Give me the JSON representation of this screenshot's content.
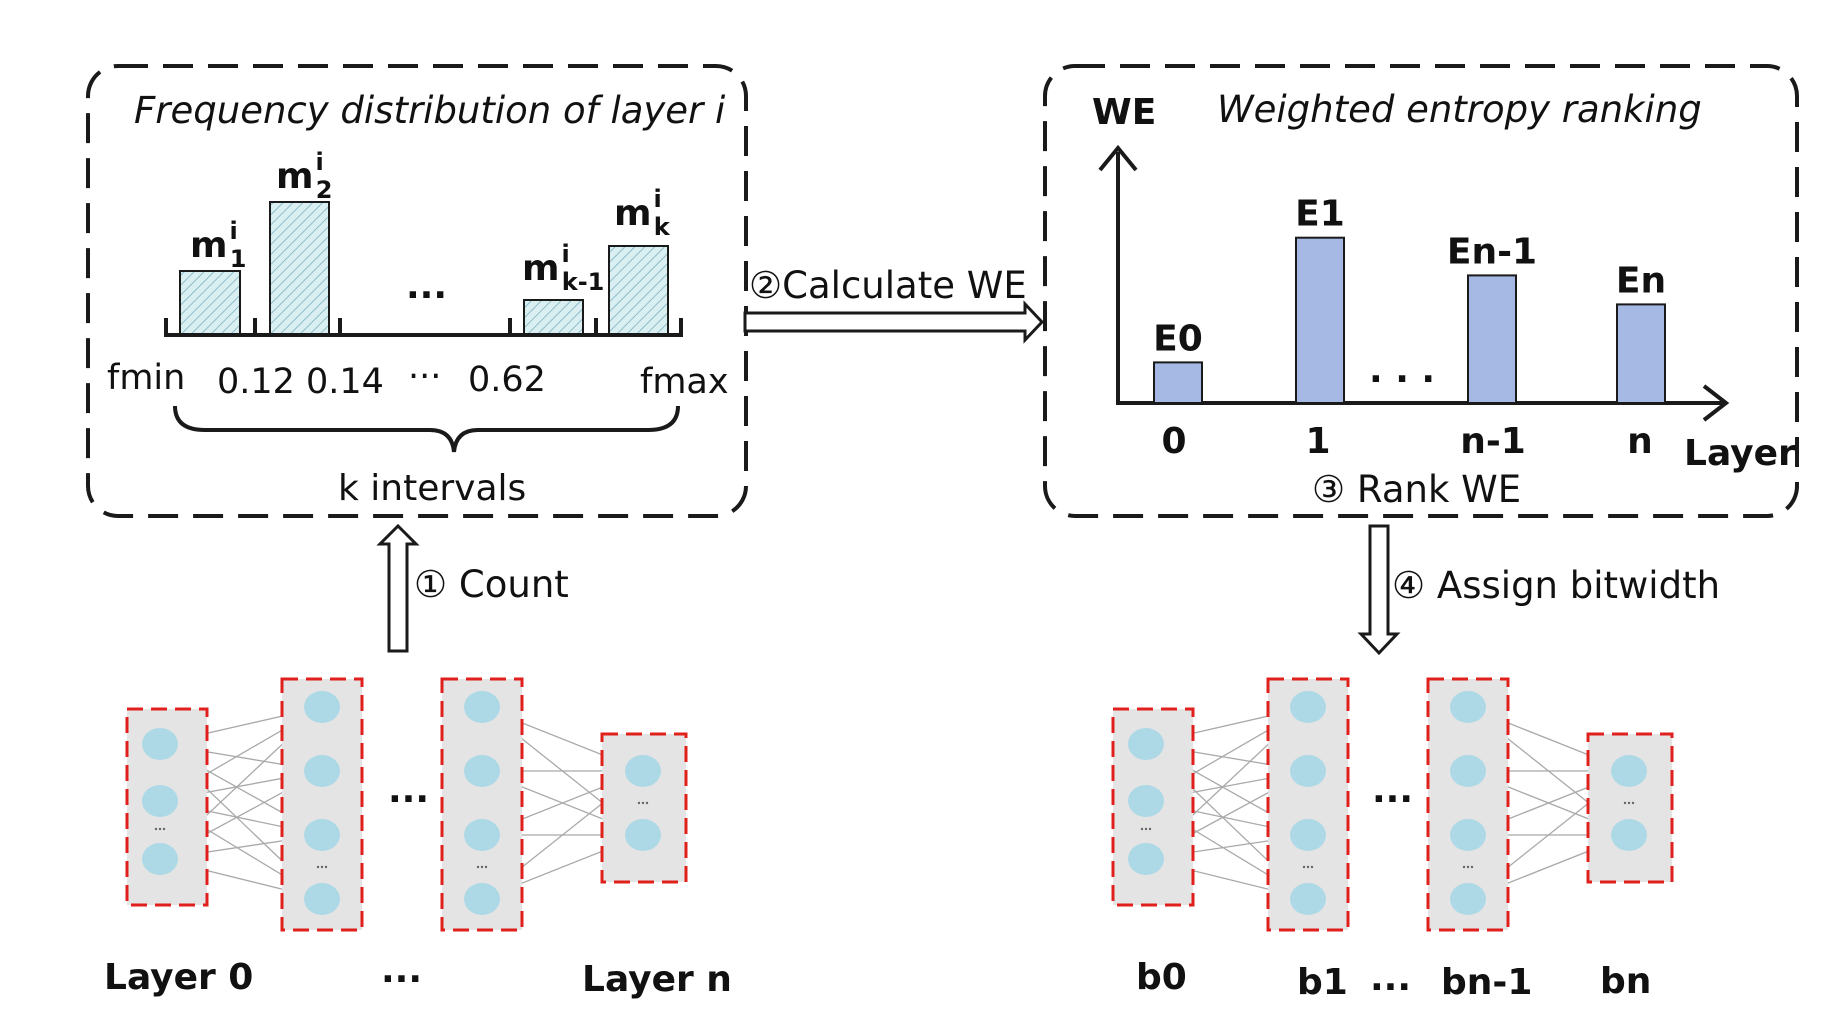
{
  "left_panel": {
    "title": "Frequency distribution of layer i",
    "bars": [
      {
        "base": "m",
        "sub": "1",
        "sup": "i"
      },
      {
        "base": "m",
        "sub": "2",
        "sup": "i"
      },
      {
        "base": "m",
        "sub": "k-1",
        "sup": "i"
      },
      {
        "base": "m",
        "sub": "k",
        "sup": "i"
      }
    ],
    "bar_gap_dots": "...",
    "axis_ticks": [
      "fmin",
      "0.12",
      "0.14",
      "...",
      "0.62",
      "fmax"
    ],
    "brace_label": "k intervals"
  },
  "right_panel": {
    "title": "Weighted entropy ranking",
    "y_axis_label": "WE",
    "x_axis_label": "Layer",
    "bars": [
      {
        "label": "E0",
        "x": "0",
        "value": 0.14
      },
      {
        "label": "E1",
        "x": "1",
        "value": 0.57
      },
      {
        "label": "En-1",
        "x": "n-1",
        "value": 0.44
      },
      {
        "label": "En",
        "x": "n",
        "value": 0.34
      }
    ],
    "bar_gap_dots": ". . .",
    "bar_color": "#a6b9e4"
  },
  "steps": {
    "count": "① Count",
    "calculate": "②Calculate WE",
    "rank": "③ Rank WE",
    "assign": "④ Assign bitwidth"
  },
  "left_network": {
    "labels": [
      "Layer 0",
      "...",
      "Layer n"
    ],
    "gap_dots": "..."
  },
  "right_network": {
    "labels": [
      "b0",
      "b1",
      "...",
      "bn-1",
      "bn"
    ],
    "gap_dots": "..."
  },
  "colors": {
    "node": "#add8e6",
    "layer_box_border": "#e0201c",
    "layer_box_fill": "#e4e4e4",
    "hist_bar_fill": "#d7eef0",
    "hist_bar_hatch": "#6aa0b0"
  }
}
